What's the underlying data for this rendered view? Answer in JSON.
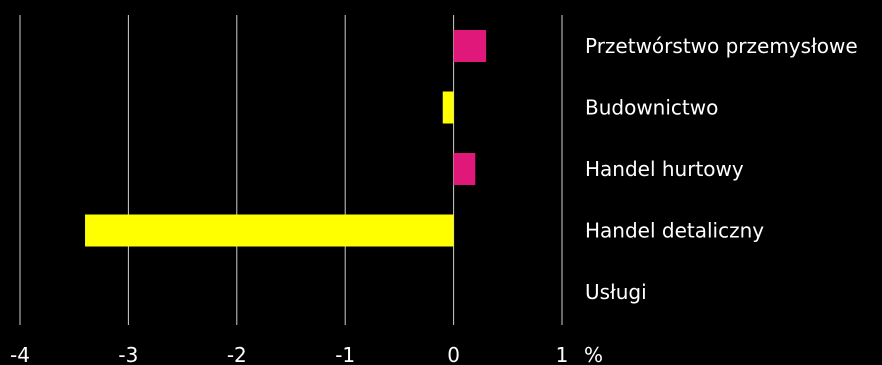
{
  "chart_data": {
    "type": "bar",
    "orientation": "horizontal",
    "categories": [
      "Przetwórstwo przemysłowe",
      "Budownictwo",
      "Handel hurtowy",
      "Handel detaliczny",
      "Usługi"
    ],
    "values": [
      0.3,
      -0.1,
      0.2,
      -3.4,
      0.0
    ],
    "bar_colors": [
      "#e0187a",
      "#ffff00",
      "#e0187a",
      "#ffff00",
      "#e0187a"
    ],
    "xlim": [
      -4,
      1
    ],
    "x_ticks": [
      -4,
      -3,
      -2,
      -1,
      0,
      1
    ],
    "x_tick_labels": [
      "-4",
      "-3",
      "-2",
      "-1",
      "0",
      "1"
    ],
    "x_unit": "%",
    "grid": true,
    "background": "#000000"
  }
}
